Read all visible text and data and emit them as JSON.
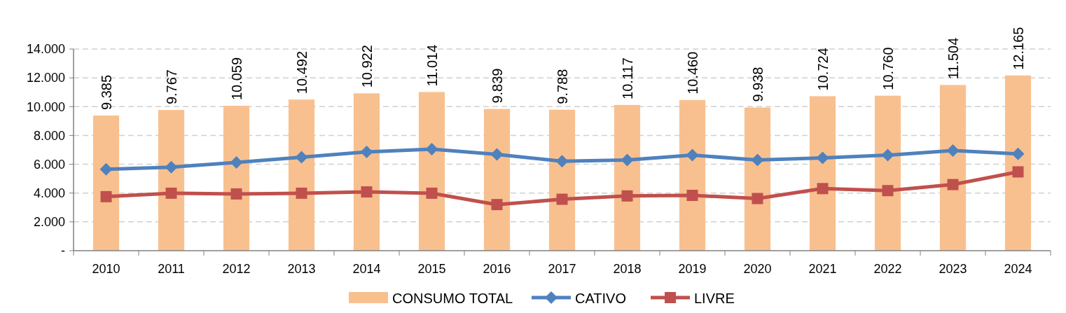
{
  "chart_data": {
    "type": "bar",
    "categories": [
      "2010",
      "2011",
      "2012",
      "2013",
      "2014",
      "2015",
      "2016",
      "2017",
      "2018",
      "2019",
      "2020",
      "2021",
      "2022",
      "2023",
      "2024"
    ],
    "series": [
      {
        "name": "CONSUMO TOTAL",
        "color": "#f9c08f",
        "values": [
          9385,
          9767,
          10059,
          10492,
          10922,
          11014,
          9839,
          9788,
          10117,
          10460,
          9938,
          10724,
          10760,
          11504,
          12165
        ],
        "value_labels": [
          "9.385",
          "9.767",
          "10.059",
          "10.492",
          "10.922",
          "11.014",
          "9.839",
          "9.788",
          "10.117",
          "10.460",
          "9.938",
          "10.724",
          "10.760",
          "11.504",
          "12.165"
        ]
      },
      {
        "name": "CATIVO",
        "type": "line",
        "color": "#4f81bd",
        "marker": "diamond",
        "values": [
          5650,
          5800,
          6120,
          6490,
          6860,
          7050,
          6680,
          6210,
          6300,
          6630,
          6300,
          6440,
          6630,
          6950,
          6720
        ]
      },
      {
        "name": "LIVRE",
        "type": "line",
        "color": "#c0504d",
        "marker": "square",
        "values": [
          3750,
          3990,
          3940,
          3990,
          4080,
          3990,
          3200,
          3570,
          3800,
          3840,
          3620,
          4310,
          4170,
          4590,
          5470
        ]
      }
    ],
    "ylim": [
      0,
      14000
    ],
    "yticks": [
      {
        "value": 0,
        "label": "-"
      },
      {
        "value": 2000,
        "label": "2.000"
      },
      {
        "value": 4000,
        "label": "4.000"
      },
      {
        "value": 6000,
        "label": "6.000"
      },
      {
        "value": 8000,
        "label": "8.000"
      },
      {
        "value": 10000,
        "label": "10.000"
      },
      {
        "value": 12000,
        "label": "12.000"
      },
      {
        "value": 14000,
        "label": "14.000"
      }
    ],
    "grid": "y",
    "legend": "bottom"
  }
}
